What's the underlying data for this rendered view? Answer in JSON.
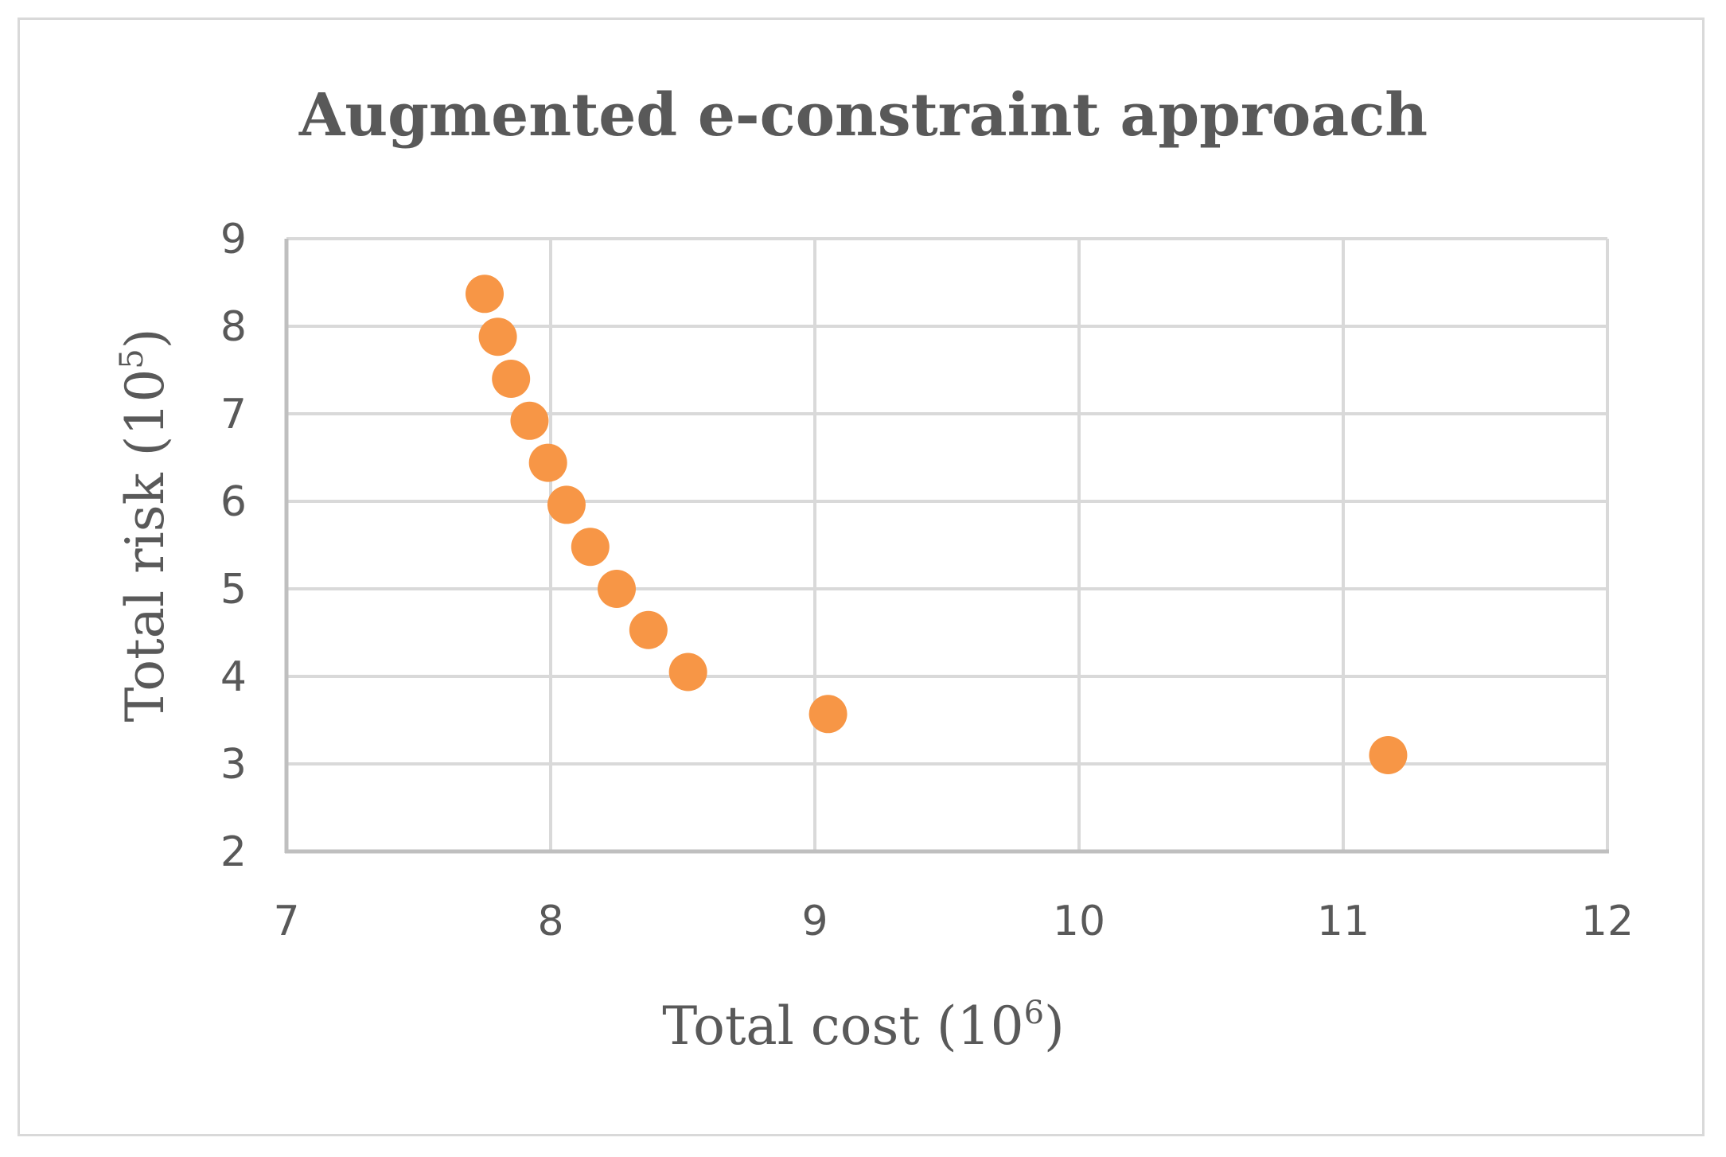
{
  "chart_data": {
    "type": "scatter",
    "title": "Augmented e-constraint approach",
    "xlabel": {
      "base": "Total cost (10",
      "exp": "6",
      "close": ")"
    },
    "ylabel": {
      "base": "Total risk (10",
      "exp": "5",
      "close": ")"
    },
    "xlim": [
      7,
      12
    ],
    "ylim": [
      2,
      9
    ],
    "xticks": [
      "7",
      "8",
      "9",
      "10",
      "11",
      "12"
    ],
    "yticks": [
      "2",
      "3",
      "4",
      "5",
      "6",
      "7",
      "8",
      "9"
    ],
    "grid": true,
    "legend": "none",
    "marker_color": "#F79646",
    "grid_color": "#d9d9d9",
    "axis_color": "#bfbfbf",
    "points": [
      {
        "x": 7.75,
        "y": 8.37
      },
      {
        "x": 7.8,
        "y": 7.88
      },
      {
        "x": 7.85,
        "y": 7.4
      },
      {
        "x": 7.92,
        "y": 6.92
      },
      {
        "x": 7.99,
        "y": 6.44
      },
      {
        "x": 8.06,
        "y": 5.96
      },
      {
        "x": 8.15,
        "y": 5.48
      },
      {
        "x": 8.25,
        "y": 5.0
      },
      {
        "x": 8.37,
        "y": 4.53
      },
      {
        "x": 8.52,
        "y": 4.05
      },
      {
        "x": 9.05,
        "y": 3.57
      },
      {
        "x": 11.17,
        "y": 3.1
      }
    ]
  }
}
